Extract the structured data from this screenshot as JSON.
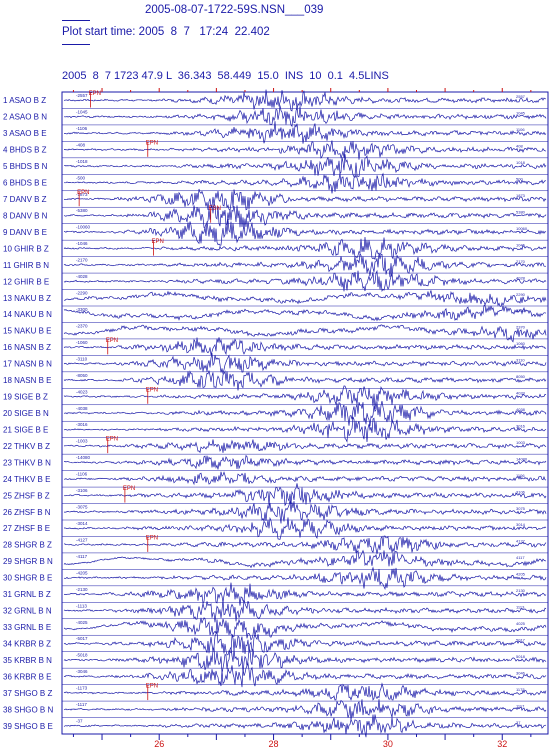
{
  "header": {
    "title": "2005-08-07-1722-59S.NSN___039",
    "plot_start": "Plot start time: 2005  8  7   17:24  22.402",
    "event_line": "2005  8  7 1723 47.9 L  36.343  58.449  15.0  INS  10  0.1  4.5LINS"
  },
  "colors": {
    "trace": "#1a1aa8",
    "pick": "#cc1111",
    "frame": "#1a1aa8"
  },
  "chart_data": {
    "type": "line",
    "title": "2005-08-07-1722-59S.NSN___039",
    "subtitle": "Plot start time: 2005  8  7   17:24  22.402",
    "xlabel": "",
    "ylabel": "",
    "xlim": [
      24.3,
      32.8
    ],
    "x_ticks": [
      26,
      28,
      30,
      32
    ],
    "grid": false,
    "traces": [
      {
        "index": "1",
        "station": "ASAO",
        "comp": "B Z",
        "amp_label": "-2557",
        "phase": "EPN",
        "phase_x": 24.8,
        "onset": 26.0,
        "emax": 28.2,
        "amp": 0.85,
        "lowfreq": 0
      },
      {
        "index": "2",
        "station": "ASAO",
        "comp": "B N",
        "amp_label": "-1045",
        "phase": "",
        "phase_x": 0,
        "onset": 26.0,
        "emax": 28.3,
        "amp": 0.8,
        "lowfreq": 0
      },
      {
        "index": "3",
        "station": "ASAO",
        "comp": "B E",
        "amp_label": "-1106",
        "phase": "",
        "phase_x": 0,
        "onset": 26.0,
        "emax": 28.2,
        "amp": 0.85,
        "lowfreq": 0
      },
      {
        "index": "4",
        "station": "BHDS",
        "comp": "B Z",
        "amp_label": "-408",
        "phase": "EPN",
        "phase_x": 25.8,
        "onset": 26.2,
        "emax": 29.3,
        "amp": 0.7,
        "lowfreq": 0
      },
      {
        "index": "5",
        "station": "BHDS",
        "comp": "B N",
        "amp_label": "-1018",
        "phase": "",
        "phase_x": 0,
        "onset": 26.2,
        "emax": 29.3,
        "amp": 0.85,
        "lowfreq": 0
      },
      {
        "index": "6",
        "station": "BHDS",
        "comp": "B E",
        "amp_label": "-500",
        "phase": "",
        "phase_x": 0,
        "onset": 26.2,
        "emax": 29.4,
        "amp": 0.8,
        "lowfreq": 0
      },
      {
        "index": "7",
        "station": "DANV",
        "comp": "B Z",
        "amp_label": "-1873",
        "phase": "EPN",
        "phase_x": 24.6,
        "onset": 25.2,
        "emax": 27.1,
        "amp": 0.9,
        "lowfreq": 0
      },
      {
        "index": "8",
        "station": "DANV",
        "comp": "B N",
        "amp_label": "-5380",
        "phase": "ESN",
        "phase_x": 26.9,
        "onset": 25.2,
        "emax": 27.2,
        "amp": 1.1,
        "lowfreq": 0
      },
      {
        "index": "9",
        "station": "DANV",
        "comp": "B E",
        "amp_label": "-10060",
        "phase": "",
        "phase_x": 0,
        "onset": 25.2,
        "emax": 27.1,
        "amp": 1.0,
        "lowfreq": 0
      },
      {
        "index": "10",
        "station": "GHIR",
        "comp": "B Z",
        "amp_label": "-1046",
        "phase": "EPN",
        "phase_x": 25.9,
        "onset": 26.0,
        "emax": 29.7,
        "amp": 0.8,
        "lowfreq": 0
      },
      {
        "index": "11",
        "station": "GHIR",
        "comp": "B N",
        "amp_label": "-2170",
        "phase": "",
        "phase_x": 0,
        "onset": 26.0,
        "emax": 29.8,
        "amp": 0.9,
        "lowfreq": 0
      },
      {
        "index": "12",
        "station": "GHIR",
        "comp": "B E",
        "amp_label": "-4028",
        "phase": "",
        "phase_x": 0,
        "onset": 26.0,
        "emax": 29.8,
        "amp": 0.95,
        "lowfreq": 0
      },
      {
        "index": "13",
        "station": "NAKU",
        "comp": "B Z",
        "amp_label": "-2290",
        "phase": "",
        "phase_x": 0,
        "onset": 24.5,
        "emax": 31.5,
        "amp": 0.45,
        "lowfreq": 1
      },
      {
        "index": "14",
        "station": "NAKU",
        "comp": "B N",
        "amp_label": "-3300",
        "phase": "",
        "phase_x": 0,
        "onset": 24.5,
        "emax": 31.5,
        "amp": 0.4,
        "lowfreq": 1
      },
      {
        "index": "15",
        "station": "NAKU",
        "comp": "B E",
        "amp_label": "-2370",
        "phase": "",
        "phase_x": 0,
        "onset": 24.5,
        "emax": 32.3,
        "amp": 0.45,
        "lowfreq": 1
      },
      {
        "index": "16",
        "station": "NASN",
        "comp": "B Z",
        "amp_label": "-1060",
        "phase": "EPN",
        "phase_x": 25.1,
        "onset": 25.2,
        "emax": 27.0,
        "amp": 0.7,
        "lowfreq": 0
      },
      {
        "index": "17",
        "station": "NASN",
        "comp": "B N",
        "amp_label": "-3110",
        "phase": "",
        "phase_x": 0,
        "onset": 25.2,
        "emax": 27.0,
        "amp": 0.75,
        "lowfreq": 0
      },
      {
        "index": "18",
        "station": "NASN",
        "comp": "B E",
        "amp_label": "-8050",
        "phase": "",
        "phase_x": 0,
        "onset": 25.2,
        "emax": 27.1,
        "amp": 0.8,
        "lowfreq": 0
      },
      {
        "index": "19",
        "station": "SIGE",
        "comp": "B Z",
        "amp_label": "-4023",
        "phase": "EPN",
        "phase_x": 25.8,
        "onset": 26.0,
        "emax": 29.6,
        "amp": 0.85,
        "lowfreq": 0
      },
      {
        "index": "20",
        "station": "SIGE",
        "comp": "B N",
        "amp_label": "-4038",
        "phase": "",
        "phase_x": 0,
        "onset": 26.0,
        "emax": 29.6,
        "amp": 1.0,
        "lowfreq": 0
      },
      {
        "index": "21",
        "station": "SIGE",
        "comp": "B E",
        "amp_label": "-3016",
        "phase": "",
        "phase_x": 0,
        "onset": 26.0,
        "emax": 29.6,
        "amp": 0.95,
        "lowfreq": 0
      },
      {
        "index": "22",
        "station": "THKV",
        "comp": "B Z",
        "amp_label": "-1003",
        "phase": "EPN",
        "phase_x": 25.1,
        "onset": 25.2,
        "emax": 27.2,
        "amp": 0.45,
        "lowfreq": 0
      },
      {
        "index": "23",
        "station": "THKV",
        "comp": "B N",
        "amp_label": "-14080",
        "phase": "",
        "phase_x": 0,
        "onset": 25.2,
        "emax": 27.2,
        "amp": 0.4,
        "lowfreq": 0
      },
      {
        "index": "24",
        "station": "THKV",
        "comp": "B E",
        "amp_label": "-1106",
        "phase": "",
        "phase_x": 0,
        "onset": 25.2,
        "emax": 27.2,
        "amp": 0.4,
        "lowfreq": 0
      },
      {
        "index": "25",
        "station": "ZHSF",
        "comp": "B Z",
        "amp_label": "-3106",
        "phase": "EPN",
        "phase_x": 25.4,
        "onset": 25.4,
        "emax": 28.3,
        "amp": 0.8,
        "lowfreq": 0
      },
      {
        "index": "26",
        "station": "ZHSF",
        "comp": "B N",
        "amp_label": "-3075",
        "phase": "",
        "phase_x": 0,
        "onset": 25.4,
        "emax": 28.3,
        "amp": 0.85,
        "lowfreq": 0
      },
      {
        "index": "27",
        "station": "ZHSF",
        "comp": "B E",
        "amp_label": "-3014",
        "phase": "",
        "phase_x": 0,
        "onset": 25.4,
        "emax": 28.3,
        "amp": 0.8,
        "lowfreq": 0
      },
      {
        "index": "28",
        "station": "SHGR",
        "comp": "B Z",
        "amp_label": "-4127",
        "phase": "EPN",
        "phase_x": 25.8,
        "onset": 26.0,
        "emax": 29.8,
        "amp": 0.7,
        "lowfreq": 0
      },
      {
        "index": "29",
        "station": "SHGR",
        "comp": "B N",
        "amp_label": "-4117",
        "phase": "",
        "phase_x": 0,
        "onset": 26.0,
        "emax": 29.8,
        "amp": 0.6,
        "lowfreq": 1
      },
      {
        "index": "30",
        "station": "SHGR",
        "comp": "B E",
        "amp_label": "-4205",
        "phase": "",
        "phase_x": 0,
        "onset": 26.0,
        "emax": 29.8,
        "amp": 0.75,
        "lowfreq": 0
      },
      {
        "index": "31",
        "station": "GRNL",
        "comp": "B Z",
        "amp_label": "-2130",
        "phase": "",
        "phase_x": 0,
        "onset": 25.0,
        "emax": 27.2,
        "amp": 0.8,
        "lowfreq": 0
      },
      {
        "index": "32",
        "station": "GRNL",
        "comp": "B N",
        "amp_label": "-1113",
        "phase": "",
        "phase_x": 0,
        "onset": 25.0,
        "emax": 27.2,
        "amp": 0.85,
        "lowfreq": 0
      },
      {
        "index": "33",
        "station": "GRNL",
        "comp": "B E",
        "amp_label": "-4025",
        "phase": "",
        "phase_x": 0,
        "onset": 25.0,
        "emax": 27.2,
        "amp": 0.85,
        "lowfreq": 1
      },
      {
        "index": "34",
        "station": "KRBR",
        "comp": "B Z",
        "amp_label": "-5017",
        "phase": "",
        "phase_x": 0,
        "onset": 25.0,
        "emax": 27.3,
        "amp": 1.0,
        "lowfreq": 0
      },
      {
        "index": "35",
        "station": "KRBR",
        "comp": "B N",
        "amp_label": "-5018",
        "phase": "",
        "phase_x": 0,
        "onset": 25.0,
        "emax": 27.3,
        "amp": 1.1,
        "lowfreq": 0
      },
      {
        "index": "36",
        "station": "KRBR",
        "comp": "B E",
        "amp_label": "-3046",
        "phase": "",
        "phase_x": 0,
        "onset": 25.0,
        "emax": 27.3,
        "amp": 0.95,
        "lowfreq": 0
      },
      {
        "index": "37",
        "station": "SHGO",
        "comp": "B Z",
        "amp_label": "-1173",
        "phase": "EPN",
        "phase_x": 25.8,
        "onset": 26.0,
        "emax": 29.6,
        "amp": 0.75,
        "lowfreq": 0
      },
      {
        "index": "38",
        "station": "SHGO",
        "comp": "B N",
        "amp_label": "-1117",
        "phase": "",
        "phase_x": 0,
        "onset": 26.0,
        "emax": 29.6,
        "amp": 0.8,
        "lowfreq": 0
      },
      {
        "index": "39",
        "station": "SHGO",
        "comp": "B E",
        "amp_label": "-37",
        "phase": "",
        "phase_x": 0,
        "onset": 26.0,
        "emax": 29.6,
        "amp": 0.8,
        "lowfreq": 0
      }
    ]
  }
}
